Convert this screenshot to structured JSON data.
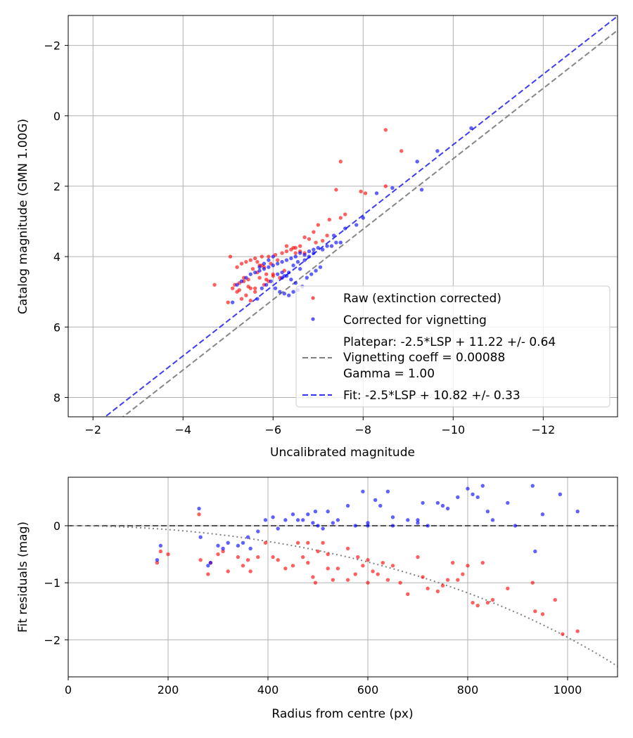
{
  "chart_data": [
    {
      "type": "scatter",
      "xlabel": "Uncalibrated magnitude",
      "ylabel": "Catalog magnitude (GMN 1.00G)",
      "xlim": [
        -1.45,
        -13.65
      ],
      "ylim": [
        8.55,
        -2.85
      ],
      "x_ticks": [
        -2,
        -4,
        -6,
        -8,
        -10,
        -12
      ],
      "x_tick_labels": [
        "−2",
        "−4",
        "−6",
        "−8",
        "−10",
        "−12"
      ],
      "y_ticks": [
        -2,
        0,
        2,
        4,
        6,
        8
      ],
      "y_tick_labels": [
        "−2",
        "0",
        "2",
        "4",
        "6",
        "8"
      ],
      "grid": true,
      "legend_position": "bottom-right",
      "colors": {
        "raw": "#ff0000",
        "corrected": "#0000ff",
        "platepar": "#808080",
        "fit": "#3333ee"
      },
      "legend": {
        "raw": "Raw (extinction corrected)",
        "corrected": "Corrected for vignetting",
        "platepar": [
          "Platepar: -2.5*LSP + 11.22 +/- 0.64",
          "Vignetting coeff = 0.00088",
          "Gamma = 1.00"
        ],
        "fit": "Fit: -2.5*LSP + 10.82 +/- 0.33"
      },
      "series": [
        {
          "name": "Raw (extinction corrected)",
          "x": [
            -8.5,
            -8.85,
            -7.5,
            -8.5,
            -7.4,
            -7.95,
            -8.05,
            -7.6,
            -7.5,
            -7.25,
            -7.0,
            -6.9,
            -7.2,
            -6.7,
            -6.8,
            -7.1,
            -6.95,
            -6.6,
            -6.5,
            -6.4,
            -6.3,
            -6.2,
            -6.05,
            -5.9,
            -5.75,
            -5.6,
            -5.5,
            -5.4,
            -5.3,
            -5.2,
            -5.05,
            -5.0,
            -5.55,
            -5.65,
            -5.85,
            -6.0,
            -6.15,
            -6.25,
            -5.45,
            -5.35,
            -5.25,
            -5.15,
            -4.7,
            -5.7,
            -5.8,
            -5.95,
            -6.1,
            -5.5,
            -5.6,
            -5.4,
            -5.2,
            -5.1,
            -5.3,
            -5.5,
            -5.7,
            -5.9,
            -6.0,
            -5.8,
            -5.6,
            -5.45,
            -5.35,
            -5.25,
            -6.3,
            -6.5,
            -6.7,
            -5.65,
            -5.75,
            -5.85,
            -6.45,
            -6.6
          ],
          "y": [
            0.4,
            1.0,
            1.3,
            2.0,
            2.1,
            2.15,
            2.2,
            2.8,
            2.9,
            2.95,
            3.1,
            3.3,
            3.4,
            3.45,
            3.5,
            3.55,
            3.6,
            3.7,
            3.75,
            3.8,
            3.85,
            3.9,
            3.95,
            4.0,
            4.0,
            4.05,
            4.1,
            4.15,
            4.2,
            4.3,
            4.0,
            5.3,
            4.35,
            4.45,
            4.5,
            4.55,
            4.6,
            4.4,
            4.65,
            4.7,
            4.75,
            4.8,
            4.8,
            4.25,
            4.3,
            4.2,
            4.1,
            4.9,
            5.0,
            5.1,
            5.0,
            4.9,
            5.2,
            5.25,
            4.6,
            4.7,
            4.5,
            4.8,
            4.9,
            4.85,
            4.6,
            4.95,
            3.7,
            3.9,
            3.9,
            4.15,
            4.25,
            4.65,
            3.75,
            3.85
          ]
        },
        {
          "name": "Corrected for vignetting",
          "x": [
            -10.4,
            -9.65,
            -9.2,
            -9.3,
            -8.65,
            -8.3,
            -8.0,
            -7.85,
            -7.6,
            -7.35,
            -7.5,
            -7.2,
            -7.0,
            -6.9,
            -6.8,
            -6.6,
            -6.7,
            -6.5,
            -6.4,
            -6.3,
            -6.2,
            -6.1,
            -6.0,
            -5.9,
            -5.8,
            -5.7,
            -5.6,
            -5.5,
            -5.4,
            -5.3,
            -5.2,
            -5.1,
            -6.05,
            -6.15,
            -6.25,
            -6.35,
            -6.45,
            -6.55,
            -6.65,
            -6.75,
            -6.85,
            -6.95,
            -7.05,
            -5.95,
            -5.85,
            -5.75,
            -5.65,
            -6.2,
            -6.3,
            -6.4,
            -6.5,
            -6.6,
            -6.0,
            -5.9,
            -5.8,
            -5.7,
            -6.1,
            -6.2,
            -6.7,
            -6.8,
            -6.9,
            -7.1,
            -7.3,
            -7.4,
            -6.45,
            -6.55,
            -6.35,
            -6.25
          ],
          "y": [
            0.35,
            1.0,
            1.3,
            2.1,
            2.05,
            2.2,
            2.9,
            3.1,
            3.2,
            3.4,
            3.6,
            3.7,
            3.75,
            3.8,
            3.85,
            3.9,
            3.95,
            4.0,
            4.05,
            4.1,
            4.15,
            4.2,
            4.25,
            4.3,
            4.35,
            4.4,
            4.45,
            4.5,
            4.6,
            4.7,
            4.8,
            5.3,
            4.9,
            5.0,
            5.05,
            5.1,
            5.0,
            4.95,
            4.85,
            4.6,
            4.5,
            4.4,
            4.3,
            4.7,
            4.8,
            4.9,
            5.2,
            4.45,
            4.55,
            4.65,
            4.75,
            4.35,
            4.0,
            4.1,
            4.2,
            4.3,
            4.5,
            4.6,
            4.1,
            4.0,
            3.9,
            3.8,
            3.7,
            3.6,
            4.25,
            4.15,
            4.45,
            4.55
          ]
        },
        {
          "name": "Platepar: -2.5*LSP + 11.22 +/- 0.64",
          "style": "dashed",
          "x": [
            -2.0,
            -13.65
          ],
          "y": [
            9.22,
            -2.43
          ]
        },
        {
          "name": "Fit: -2.5*LSP + 10.82 +/- 0.33",
          "style": "dashed",
          "x": [
            -2.0,
            -13.65
          ],
          "y": [
            8.82,
            -2.83
          ]
        }
      ]
    },
    {
      "type": "scatter",
      "xlabel": "Radius from centre (px)",
      "ylabel": "Fit residuals (mag)",
      "xlim": [
        0,
        1100
      ],
      "ylim": [
        -2.65,
        0.85
      ],
      "x_ticks": [
        0,
        200,
        400,
        600,
        800,
        1000
      ],
      "x_tick_labels": [
        "0",
        "200",
        "400",
        "600",
        "800",
        "1000"
      ],
      "y_ticks": [
        0,
        -1,
        -2
      ],
      "y_tick_labels": [
        "0",
        "−1",
        "−2"
      ],
      "grid": true,
      "reference_lines": [
        {
          "kind": "horizontal",
          "y": 0,
          "style": "dashed",
          "color": "#555555"
        },
        {
          "kind": "vignetting_model",
          "coefficient": 0.00088,
          "style": "dotted",
          "color": "#808080"
        }
      ],
      "series": [
        {
          "name": "Raw (extinction corrected)",
          "x": [
            178,
            185,
            200,
            262,
            265,
            280,
            285,
            300,
            310,
            320,
            340,
            350,
            360,
            365,
            380,
            395,
            410,
            420,
            435,
            450,
            460,
            470,
            480,
            490,
            495,
            500,
            510,
            520,
            530,
            540,
            560,
            575,
            580,
            590,
            600,
            610,
            620,
            630,
            640,
            650,
            665,
            680,
            700,
            710,
            720,
            740,
            750,
            760,
            770,
            780,
            790,
            800,
            810,
            820,
            830,
            840,
            850,
            880,
            930,
            935,
            950,
            975,
            990,
            1020,
            480,
            520,
            560,
            600
          ],
          "y": [
            -0.65,
            -0.45,
            -0.5,
            0.2,
            -0.6,
            -0.85,
            -0.65,
            -0.5,
            -0.45,
            -0.8,
            -0.55,
            -0.7,
            -0.6,
            -0.8,
            -0.55,
            -0.3,
            -0.55,
            -0.6,
            -0.75,
            -0.7,
            -0.3,
            -0.55,
            -0.65,
            -0.9,
            -1.0,
            -0.45,
            -0.3,
            -0.75,
            -0.95,
            -0.75,
            -0.95,
            -0.85,
            -0.55,
            -0.7,
            -1.0,
            -0.8,
            -0.85,
            -0.65,
            -0.95,
            -0.7,
            -1.0,
            -1.2,
            -0.55,
            -0.9,
            -1.1,
            -1.15,
            -1.05,
            -0.95,
            -0.65,
            -0.95,
            -0.85,
            -0.7,
            -1.35,
            -1.4,
            -0.65,
            -1.35,
            -1.3,
            -1.1,
            -1.0,
            -1.5,
            -1.55,
            -1.3,
            -1.9,
            -1.85,
            -0.3,
            -0.5,
            -0.4,
            -0.6
          ]
        },
        {
          "name": "Corrected for vignetting",
          "x": [
            178,
            185,
            262,
            265,
            280,
            285,
            300,
            310,
            320,
            340,
            350,
            360,
            365,
            380,
            395,
            410,
            420,
            435,
            450,
            460,
            470,
            480,
            490,
            495,
            500,
            510,
            520,
            530,
            540,
            560,
            575,
            590,
            600,
            615,
            625,
            640,
            650,
            680,
            700,
            710,
            720,
            740,
            750,
            760,
            780,
            800,
            810,
            820,
            830,
            840,
            850,
            880,
            895,
            930,
            935,
            950,
            985,
            1020,
            600,
            650,
            700
          ],
          "y": [
            -0.6,
            -0.35,
            0.3,
            -0.2,
            -0.7,
            -0.65,
            -0.35,
            -0.4,
            -0.3,
            -0.35,
            -0.3,
            -0.2,
            -0.4,
            -0.1,
            0.1,
            0.15,
            -0.05,
            0.1,
            0.2,
            0.1,
            0.1,
            0.2,
            0.05,
            0.25,
            0.0,
            -0.05,
            0.25,
            0.05,
            0.1,
            0.35,
            0.0,
            0.6,
            0.0,
            0.45,
            0.35,
            0.6,
            0.0,
            0.1,
            0.05,
            0.4,
            0.0,
            0.4,
            0.35,
            0.3,
            0.5,
            0.65,
            0.55,
            0.5,
            0.7,
            0.25,
            0.1,
            0.4,
            0.0,
            0.7,
            -0.45,
            0.2,
            0.55,
            0.25,
            0.05,
            0.15,
            0.1
          ]
        }
      ]
    }
  ]
}
